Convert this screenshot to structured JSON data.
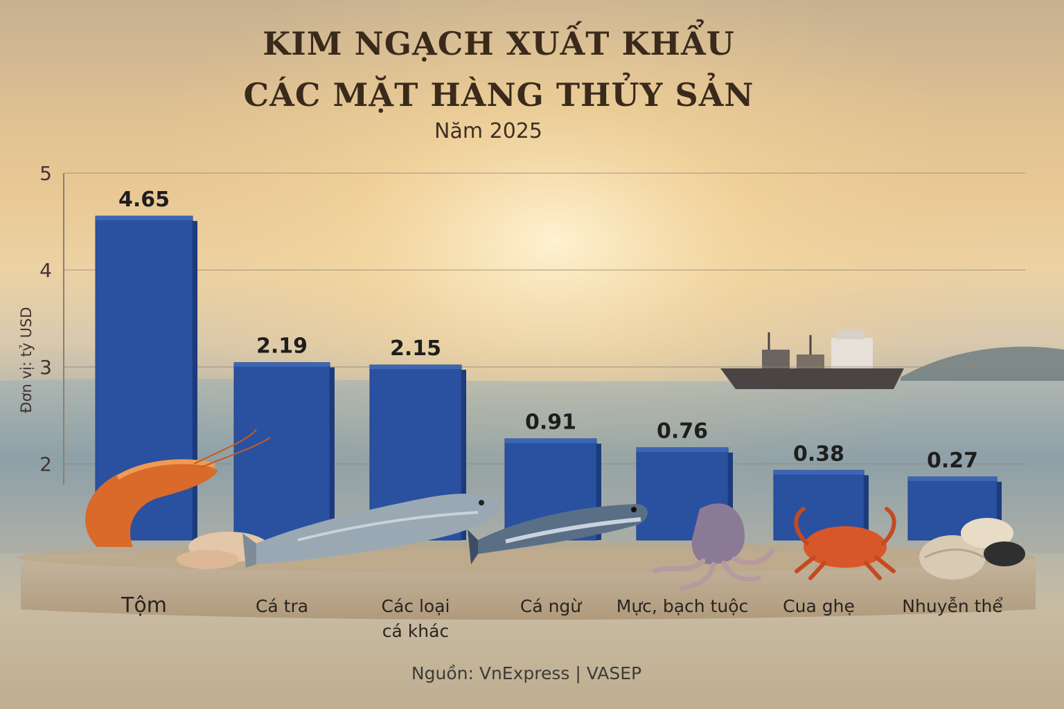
{
  "chart_data": {
    "type": "bar",
    "title_line1": "KIM NGẠCH XUẤT KHẨU",
    "title_line2": "CÁC MẶT HÀNG THỦY SẢN",
    "subtitle": "Năm 2025",
    "ylabel": "Đơn vị: tỷ USD",
    "source": "Nguồn: VnExpress | VASEP",
    "categories": [
      [
        "Tộm"
      ],
      [
        "Cá tra"
      ],
      [
        "Các loại",
        "cá khác"
      ],
      [
        "Cá ngừ"
      ],
      [
        "Mực, bạch tuộc"
      ],
      [
        "Cua ghẹ"
      ],
      [
        "Nhuyễn thể"
      ]
    ],
    "values": [
      4.65,
      2.19,
      2.15,
      0.91,
      0.76,
      0.38,
      0.27
    ],
    "y_ticks": [
      "5",
      "4",
      "3",
      "2"
    ],
    "grid": true,
    "colors": {
      "bar": "#2a51a0",
      "bar_top": "#3d66b4",
      "bar_side": "#1b3b7c"
    },
    "illustrations": [
      "shrimp-icon",
      "pangasius-fish-icon",
      "tuna-fish-icon",
      "squid-octopus-icon",
      "crab-icon",
      "clam-shell-icon",
      "cargo-ship-icon"
    ]
  }
}
